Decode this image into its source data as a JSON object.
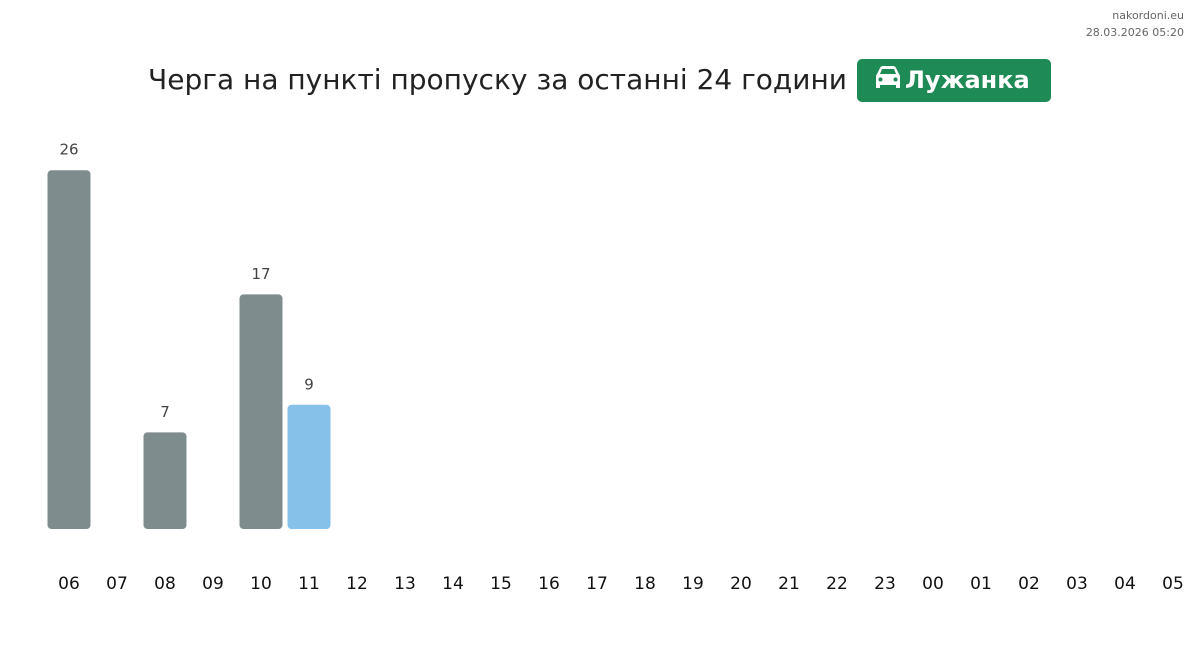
{
  "site": "nakordoni.eu",
  "timestamp": "28.03.2026 05:20",
  "chart_data": {
    "type": "bar",
    "title": "Черга на пункті пропуску за останні 24 години",
    "badge": "Лужанка",
    "categories": [
      "06",
      "07",
      "08",
      "09",
      "10",
      "11",
      "12",
      "13",
      "14",
      "15",
      "16",
      "17",
      "18",
      "19",
      "20",
      "21",
      "22",
      "23",
      "00",
      "01",
      "02",
      "03",
      "04",
      "05"
    ],
    "values": [
      26,
      null,
      7,
      null,
      17,
      9,
      null,
      null,
      null,
      null,
      null,
      null,
      null,
      null,
      null,
      null,
      null,
      null,
      null,
      null,
      null,
      null,
      null,
      null
    ],
    "colors": [
      "#7f8c8d",
      "#7f8c8d",
      "#7f8c8d",
      "#7f8c8d",
      "#7f8c8d",
      "#85c1e9",
      "#7f8c8d",
      "#7f8c8d",
      "#7f8c8d",
      "#7f8c8d",
      "#7f8c8d",
      "#7f8c8d",
      "#7f8c8d",
      "#7f8c8d",
      "#7f8c8d",
      "#7f8c8d",
      "#7f8c8d",
      "#7f8c8d",
      "#7f8c8d",
      "#7f8c8d",
      "#7f8c8d",
      "#7f8c8d",
      "#7f8c8d",
      "#7f8c8d"
    ],
    "badge_color": "#1e8a55"
  }
}
